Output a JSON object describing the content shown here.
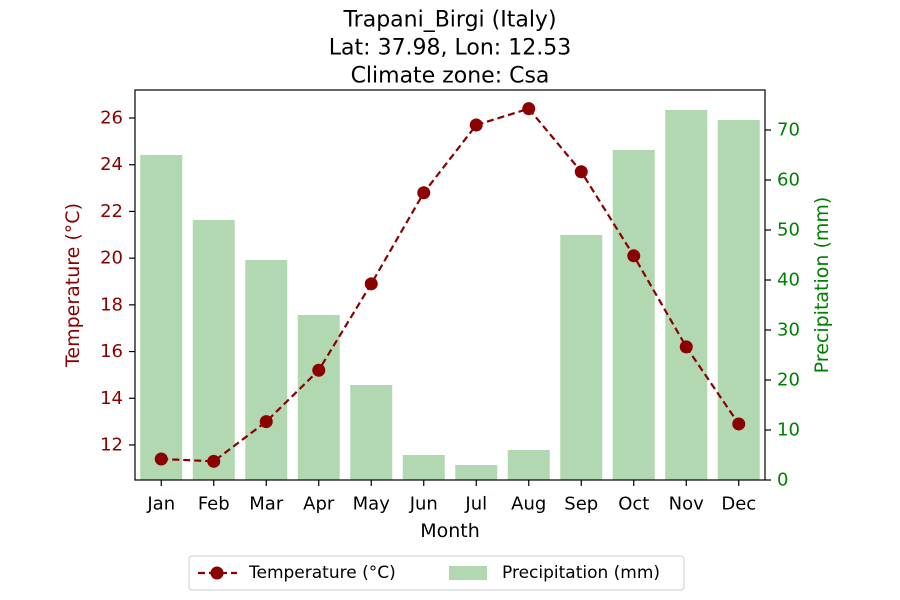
{
  "chart_data": {
    "type": "bar+line",
    "title_lines": [
      "Trapani_Birgi (Italy)",
      "Lat: 37.98, Lon: 12.53",
      "Climate zone: Csa"
    ],
    "xlabel": "Month",
    "ylabel_left": "Temperature (°C)",
    "ylabel_right": "Precipitation (mm)",
    "categories": [
      "Jan",
      "Feb",
      "Mar",
      "Apr",
      "May",
      "Jun",
      "Jul",
      "Aug",
      "Sep",
      "Oct",
      "Nov",
      "Dec"
    ],
    "temperature": {
      "name": "Temperature (°C)",
      "values": [
        11.4,
        11.3,
        13.0,
        15.2,
        18.9,
        22.8,
        25.7,
        26.4,
        23.7,
        20.1,
        16.2,
        12.9
      ],
      "color": "#8b0000",
      "axis": "left",
      "ylim": [
        10.5,
        27.2
      ],
      "ticks": [
        12,
        14,
        16,
        18,
        20,
        22,
        24,
        26
      ]
    },
    "precipitation": {
      "name": "Precipitation (mm)",
      "values": [
        65,
        52,
        44,
        33,
        19,
        5,
        3,
        6,
        49,
        66,
        74,
        72
      ],
      "color": "#b2d8b2",
      "axis": "right",
      "ylim": [
        0,
        78
      ],
      "ticks": [
        0,
        10,
        20,
        30,
        40,
        50,
        60,
        70
      ]
    },
    "left_axis_color": "#8b0000",
    "right_axis_color": "#008000",
    "legend_position": "bottom-center",
    "grid": false
  }
}
